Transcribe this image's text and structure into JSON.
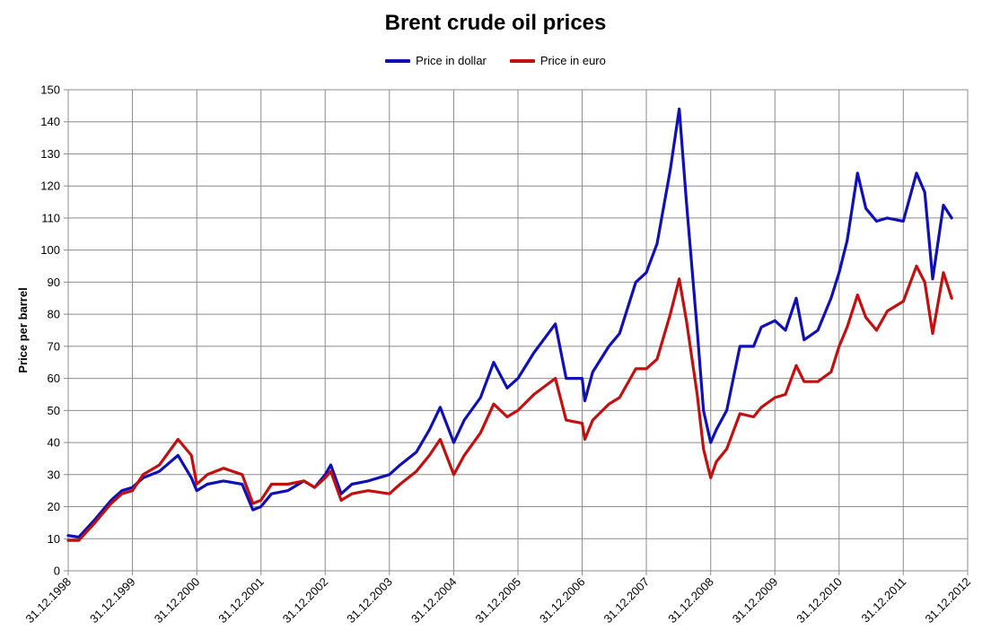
{
  "chart_data": {
    "type": "line",
    "title": "Brent crude oil prices",
    "xlabel": "",
    "ylabel": "Price per barrel",
    "ylim": [
      0,
      150
    ],
    "yticks": [
      "0",
      "10",
      "20",
      "30",
      "40",
      "50",
      "60",
      "70",
      "80",
      "90",
      "100",
      "110",
      "120",
      "130",
      "140",
      "150"
    ],
    "xlim": [
      "31.12.1998",
      "31.12.2012"
    ],
    "xticks": [
      "31.12.1998",
      "31.12.1999",
      "31.12.2000",
      "31.12.2001",
      "31.12.2002",
      "31.12.2003",
      "31.12.2004",
      "31.12.2005",
      "31.12.2006",
      "31.12.2007",
      "31.12.2008",
      "31.12.2009",
      "31.12.2010",
      "31.12.2011",
      "31.12.2012"
    ],
    "grid": true,
    "legend_position": "top-center",
    "series": [
      {
        "name": "Price in dollar",
        "color": "#1010b4",
        "points": [
          [
            "31.12.1998",
            11
          ],
          [
            "01.03.1999",
            10.5
          ],
          [
            "01.06.1999",
            16
          ],
          [
            "01.09.1999",
            22
          ],
          [
            "01.11.1999",
            25
          ],
          [
            "31.12.1999",
            26
          ],
          [
            "01.03.2000",
            29
          ],
          [
            "01.06.2000",
            31
          ],
          [
            "15.09.2000",
            36
          ],
          [
            "30.11.2000",
            29
          ],
          [
            "31.12.2000",
            25
          ],
          [
            "01.03.2001",
            27
          ],
          [
            "01.06.2001",
            28
          ],
          [
            "15.09.2001",
            27
          ],
          [
            "15.11.2001",
            19
          ],
          [
            "31.12.2001",
            20
          ],
          [
            "01.03.2002",
            24
          ],
          [
            "01.06.2002",
            25
          ],
          [
            "01.09.2002",
            28
          ],
          [
            "01.11.2002",
            26
          ],
          [
            "31.12.2002",
            30
          ],
          [
            "01.02.2003",
            33
          ],
          [
            "01.04.2003",
            24
          ],
          [
            "01.06.2003",
            27
          ],
          [
            "01.09.2003",
            28
          ],
          [
            "31.12.2003",
            30
          ],
          [
            "01.03.2004",
            33
          ],
          [
            "01.06.2004",
            37
          ],
          [
            "15.08.2004",
            44
          ],
          [
            "15.10.2004",
            51
          ],
          [
            "31.12.2004",
            40
          ],
          [
            "01.03.2005",
            47
          ],
          [
            "01.06.2005",
            54
          ],
          [
            "15.08.2005",
            65
          ],
          [
            "31.10.2005",
            57
          ],
          [
            "31.12.2005",
            60
          ],
          [
            "01.04.2006",
            68
          ],
          [
            "01.08.2006",
            77
          ],
          [
            "01.10.2006",
            60
          ],
          [
            "31.12.2006",
            60
          ],
          [
            "15.01.2007",
            53
          ],
          [
            "01.03.2007",
            62
          ],
          [
            "01.06.2007",
            70
          ],
          [
            "01.08.2007",
            74
          ],
          [
            "01.11.2007",
            90
          ],
          [
            "31.12.2007",
            93
          ],
          [
            "01.03.2008",
            102
          ],
          [
            "15.05.2008",
            125
          ],
          [
            "05.07.2008",
            144
          ],
          [
            "15.08.2008",
            115
          ],
          [
            "15.10.2008",
            75
          ],
          [
            "20.11.2008",
            50
          ],
          [
            "31.12.2008",
            40
          ],
          [
            "01.02.2009",
            44
          ],
          [
            "01.04.2009",
            50
          ],
          [
            "15.06.2009",
            70
          ],
          [
            "01.09.2009",
            70
          ],
          [
            "15.10.2009",
            76
          ],
          [
            "31.12.2009",
            78
          ],
          [
            "01.03.2010",
            75
          ],
          [
            "01.05.2010",
            85
          ],
          [
            "15.06.2010",
            72
          ],
          [
            "01.09.2010",
            75
          ],
          [
            "15.11.2010",
            85
          ],
          [
            "31.12.2010",
            93
          ],
          [
            "15.02.2011",
            103
          ],
          [
            "15.04.2011",
            124
          ],
          [
            "01.06.2011",
            113
          ],
          [
            "01.08.2011",
            109
          ],
          [
            "01.10.2011",
            110
          ],
          [
            "31.12.2011",
            109
          ],
          [
            "15.03.2012",
            124
          ],
          [
            "01.05.2012",
            118
          ],
          [
            "15.06.2012",
            91
          ],
          [
            "15.08.2012",
            114
          ],
          [
            "01.10.2012",
            110
          ]
        ]
      },
      {
        "name": "Price in euro",
        "color": "#c01010",
        "points": [
          [
            "31.12.1998",
            9.5
          ],
          [
            "01.03.1999",
            9.5
          ],
          [
            "01.06.1999",
            15
          ],
          [
            "01.09.1999",
            21
          ],
          [
            "01.11.1999",
            24
          ],
          [
            "31.12.1999",
            25
          ],
          [
            "01.03.2000",
            30
          ],
          [
            "01.06.2000",
            33
          ],
          [
            "15.09.2000",
            41
          ],
          [
            "30.11.2000",
            36
          ],
          [
            "31.12.2000",
            27
          ],
          [
            "01.03.2001",
            30
          ],
          [
            "01.06.2001",
            32
          ],
          [
            "15.09.2001",
            30
          ],
          [
            "15.11.2001",
            21
          ],
          [
            "31.12.2001",
            22
          ],
          [
            "01.03.2002",
            27
          ],
          [
            "01.06.2002",
            27
          ],
          [
            "01.09.2002",
            28
          ],
          [
            "01.11.2002",
            26
          ],
          [
            "31.12.2002",
            29
          ],
          [
            "01.02.2003",
            31
          ],
          [
            "01.04.2003",
            22
          ],
          [
            "01.06.2003",
            24
          ],
          [
            "01.09.2003",
            25
          ],
          [
            "31.12.2003",
            24
          ],
          [
            "01.03.2004",
            27
          ],
          [
            "01.06.2004",
            31
          ],
          [
            "15.08.2004",
            36
          ],
          [
            "15.10.2004",
            41
          ],
          [
            "31.12.2004",
            30
          ],
          [
            "01.03.2005",
            36
          ],
          [
            "01.06.2005",
            43
          ],
          [
            "15.08.2005",
            52
          ],
          [
            "31.10.2005",
            48
          ],
          [
            "31.12.2005",
            50
          ],
          [
            "01.04.2006",
            55
          ],
          [
            "01.08.2006",
            60
          ],
          [
            "01.10.2006",
            47
          ],
          [
            "31.12.2006",
            46
          ],
          [
            "15.01.2007",
            41
          ],
          [
            "01.03.2007",
            47
          ],
          [
            "01.06.2007",
            52
          ],
          [
            "01.08.2007",
            54
          ],
          [
            "01.11.2007",
            63
          ],
          [
            "31.12.2007",
            63
          ],
          [
            "01.03.2008",
            66
          ],
          [
            "15.05.2008",
            80
          ],
          [
            "05.07.2008",
            91
          ],
          [
            "15.08.2008",
            78
          ],
          [
            "15.10.2008",
            55
          ],
          [
            "20.11.2008",
            38
          ],
          [
            "31.12.2008",
            29
          ],
          [
            "01.02.2009",
            34
          ],
          [
            "01.04.2009",
            38
          ],
          [
            "15.06.2009",
            49
          ],
          [
            "01.09.2009",
            48
          ],
          [
            "15.10.2009",
            51
          ],
          [
            "31.12.2009",
            54
          ],
          [
            "01.03.2010",
            55
          ],
          [
            "01.05.2010",
            64
          ],
          [
            "15.06.2010",
            59
          ],
          [
            "01.09.2010",
            59
          ],
          [
            "15.11.2010",
            62
          ],
          [
            "31.12.2010",
            70
          ],
          [
            "15.02.2011",
            76
          ],
          [
            "15.04.2011",
            86
          ],
          [
            "01.06.2011",
            79
          ],
          [
            "01.08.2011",
            75
          ],
          [
            "01.10.2011",
            81
          ],
          [
            "31.12.2011",
            84
          ],
          [
            "15.03.2012",
            95
          ],
          [
            "01.05.2012",
            90
          ],
          [
            "15.06.2012",
            74
          ],
          [
            "15.08.2012",
            93
          ],
          [
            "01.10.2012",
            85
          ]
        ]
      }
    ]
  }
}
